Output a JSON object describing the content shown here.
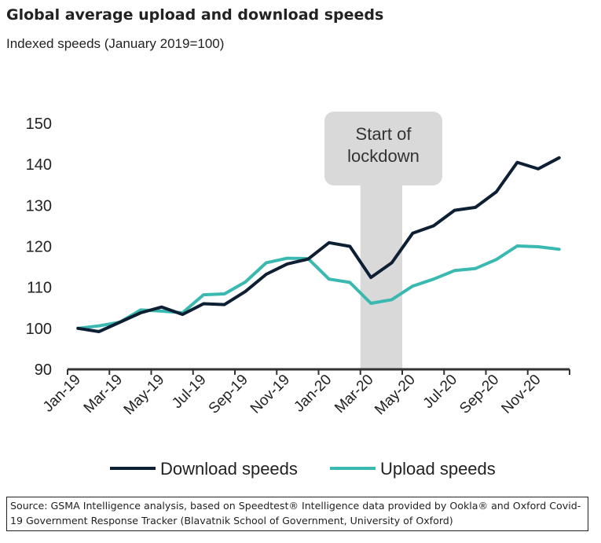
{
  "title": "Global average upload and download speeds",
  "subtitle": "Indexed speeds (January 2019=100)",
  "source": "Source: GSMA Intelligence analysis, based on Speedtest® Intelligence data provided by Ookla® and Oxford Covid-19 Government Response Tracker (Blavatnik School of Government, University of Oxford)",
  "chart_data": {
    "type": "line",
    "title": "Global average upload and download speeds",
    "subtitle": "Indexed speeds (January 2019=100)",
    "xlabel": "",
    "ylabel": "",
    "ylim": [
      90,
      150
    ],
    "yticks": [
      90,
      100,
      110,
      120,
      130,
      140,
      150
    ],
    "x": [
      "Jan-19",
      "Feb-19",
      "Mar-19",
      "Apr-19",
      "May-19",
      "Jun-19",
      "Jul-19",
      "Aug-19",
      "Sep-19",
      "Oct-19",
      "Nov-19",
      "Dec-19",
      "Jan-20",
      "Feb-20",
      "Mar-20",
      "Apr-20",
      "May-20",
      "Jun-20",
      "Jul-20",
      "Aug-20",
      "Sep-20",
      "Oct-20",
      "Nov-20",
      "Dec-20"
    ],
    "xtick_labels": [
      "Jan-19",
      "Mar-19",
      "May-19",
      "Jul-19",
      "Sep-19",
      "Nov-19",
      "Jan-20",
      "Mar-20",
      "May-20",
      "Jul-20",
      "Sep-20",
      "Nov-20"
    ],
    "series": [
      {
        "name": "Download speeds",
        "color": "#0d1f33",
        "values": [
          100,
          99.2,
          101.5,
          103.8,
          105.2,
          103.4,
          106,
          105.8,
          109,
          113.2,
          115.7,
          116.9,
          120.9,
          120,
          112.4,
          116,
          123.2,
          125,
          128.8,
          129.5,
          133.3,
          140.5,
          138.9,
          141.6
        ]
      },
      {
        "name": "Upload speeds",
        "color": "#3ab9b1",
        "values": [
          100,
          100.6,
          101.5,
          104.5,
          104.2,
          103.8,
          108.2,
          108.4,
          111.3,
          116,
          117.1,
          117,
          112,
          111.2,
          106.1,
          107,
          110.3,
          112,
          114.1,
          114.6,
          116.8,
          120.1,
          119.9,
          119.3
        ]
      }
    ],
    "annotation": {
      "text_line1": "Start of",
      "text_line2": "lockdown",
      "from": "Mar-20",
      "to": "Apr-20",
      "color": "#d9d9d9"
    },
    "grid": false,
    "legend": "bottom"
  }
}
